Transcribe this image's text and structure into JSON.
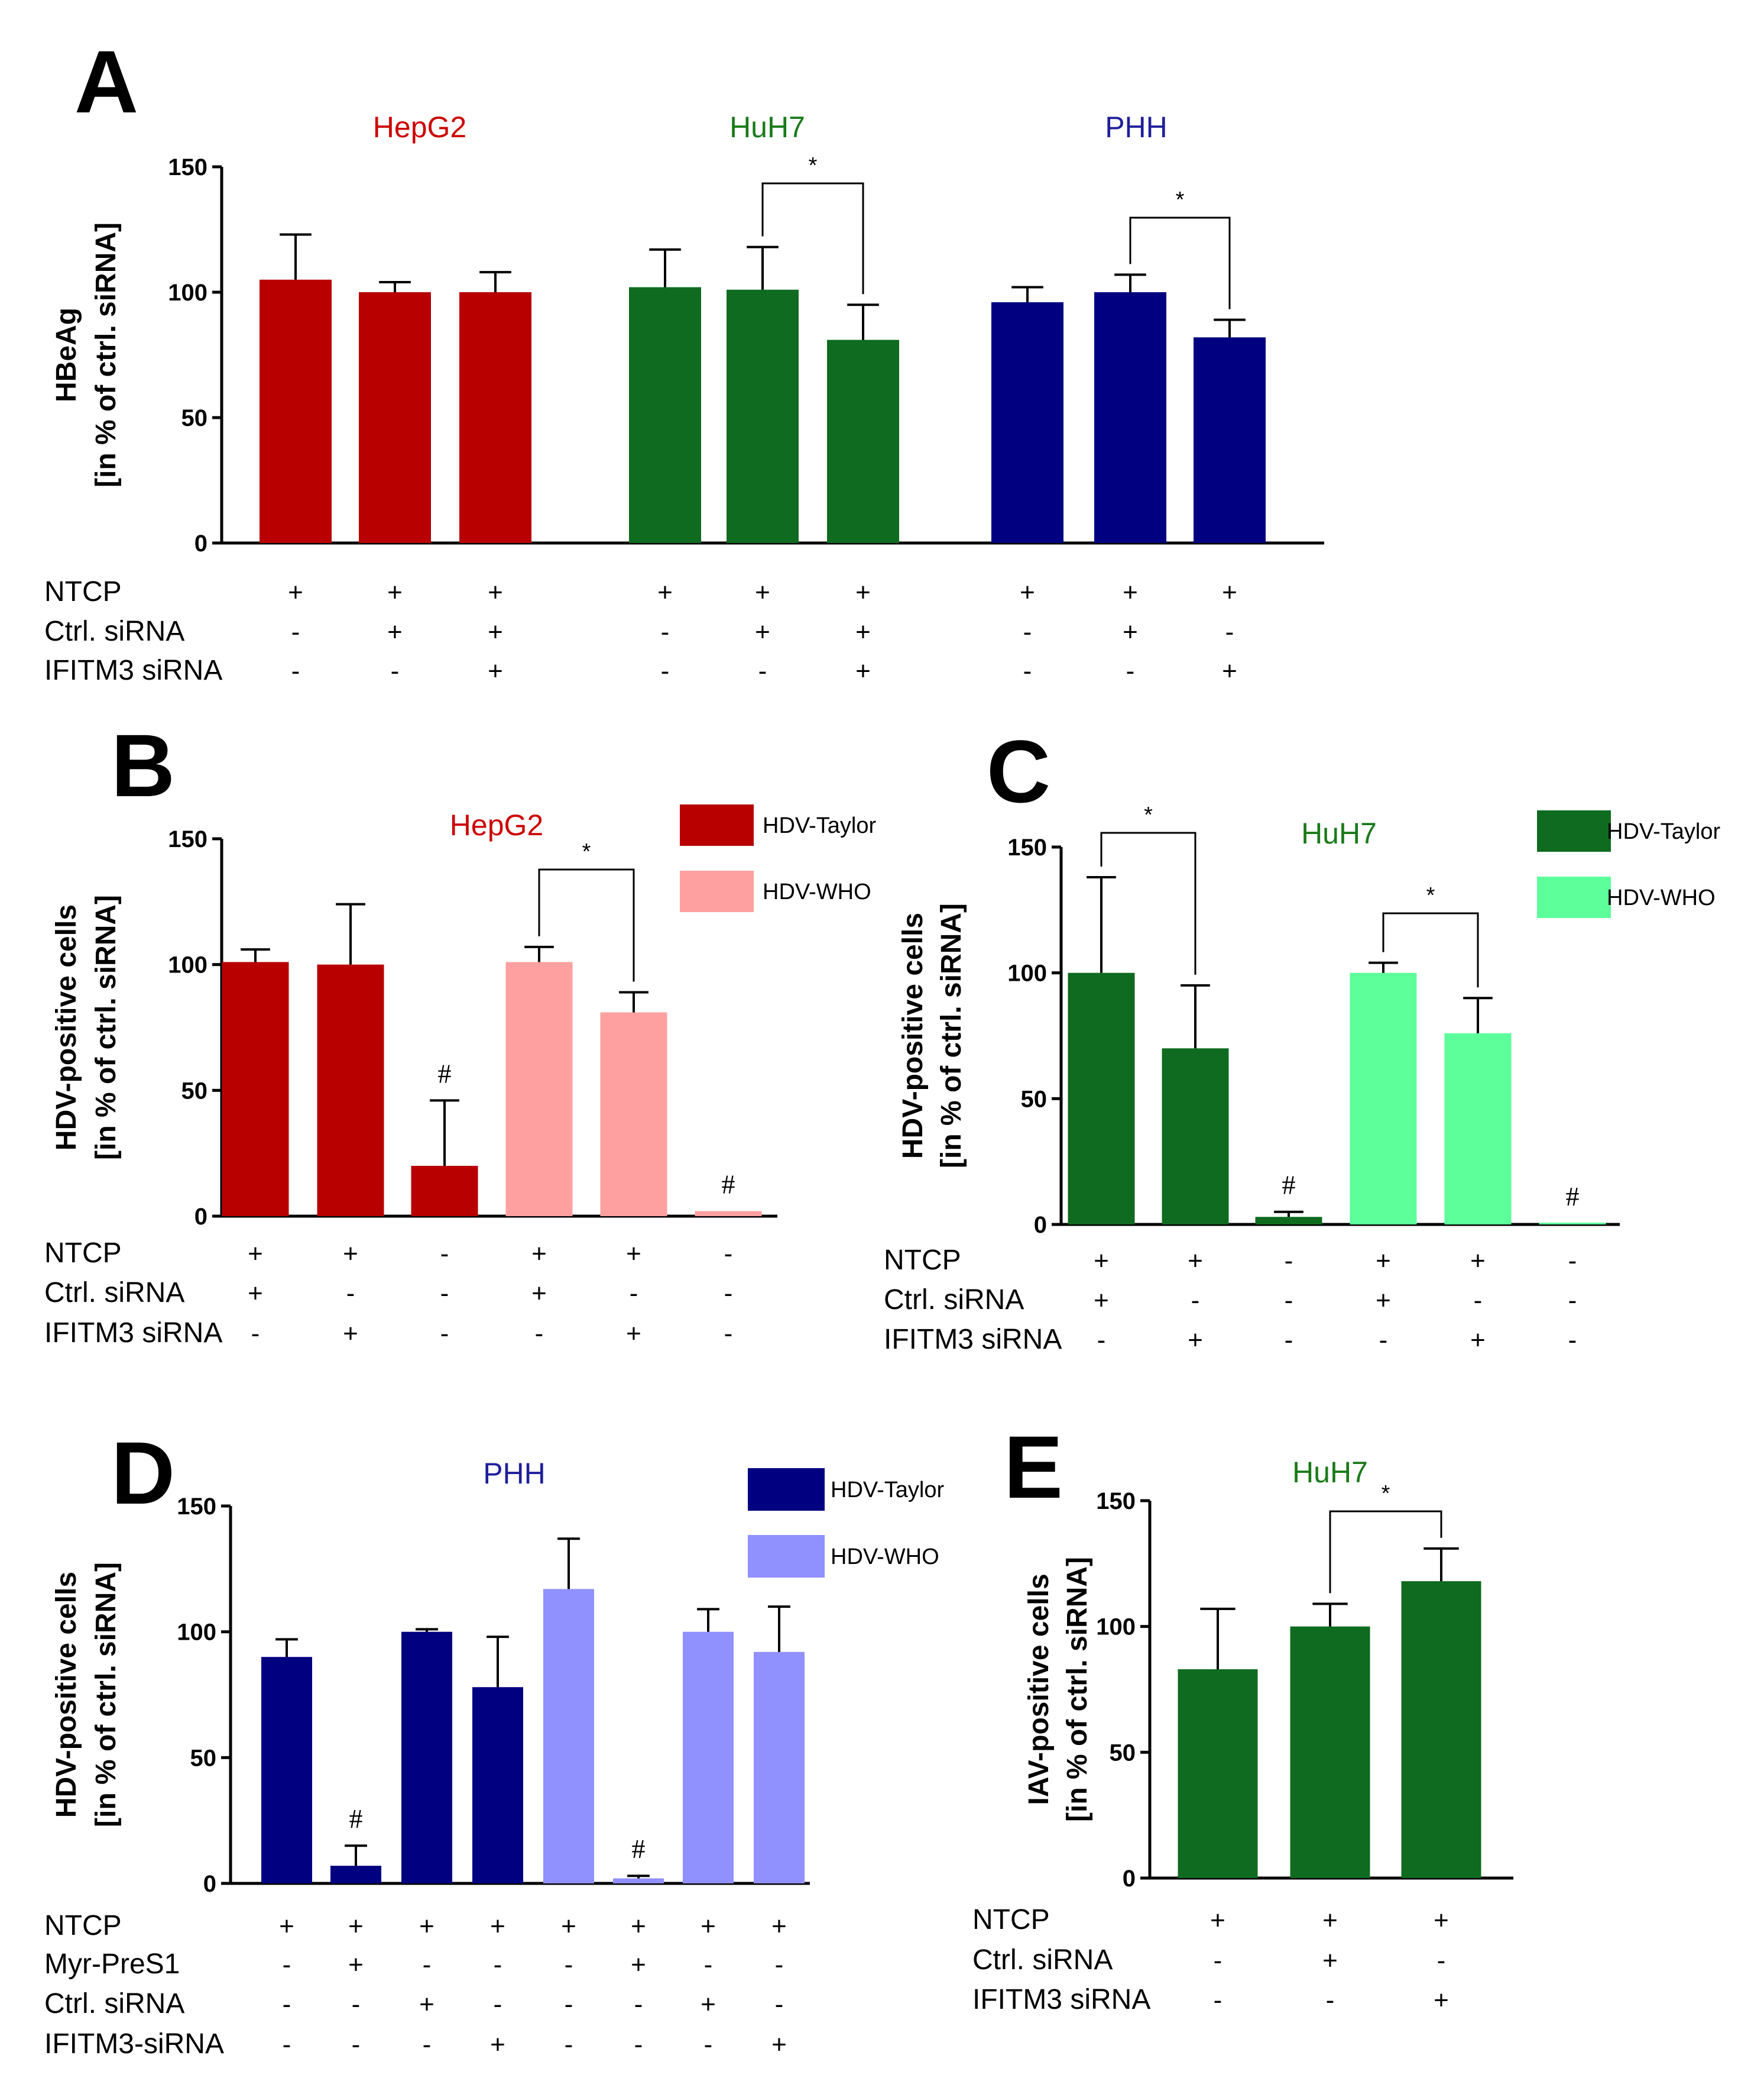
{
  "chart_data": [
    {
      "panel": "A",
      "type": "bar",
      "ylabel_line1": "HBeAg",
      "ylabel_line2": "[in % of ctrl. siRNA]",
      "ylim": [
        0,
        150
      ],
      "yticks": [
        "0",
        "50",
        "100",
        "150"
      ],
      "groups": [
        {
          "title": "HepG2",
          "color": "#cc0000"
        },
        {
          "title": "HuH7",
          "color": "#1a7a1a"
        },
        {
          "title": "PHH",
          "color": "#1f1f9a"
        }
      ],
      "bars": [
        {
          "value": 105,
          "error": 18,
          "color": "#b80000"
        },
        {
          "value": 100,
          "error": 4,
          "color": "#b80000"
        },
        {
          "value": 100,
          "error": 8,
          "color": "#b80000"
        },
        {
          "value": 102,
          "error": 15,
          "color": "#0f6b1f"
        },
        {
          "value": 101,
          "error": 17,
          "color": "#0f6b1f"
        },
        {
          "value": 81,
          "error": 14,
          "color": "#0f6b1f"
        },
        {
          "value": 96,
          "error": 6,
          "color": "#000080"
        },
        {
          "value": 100,
          "error": 7,
          "color": "#000080"
        },
        {
          "value": 82,
          "error": 7,
          "color": "#000080"
        }
      ],
      "significance": [
        {
          "from": 4,
          "to": 5,
          "label": "*"
        },
        {
          "from": 7,
          "to": 8,
          "label": "*"
        }
      ],
      "row_labels": [
        "NTCP",
        "Ctrl. siRNA",
        "IFITM3 siRNA"
      ],
      "row_values": [
        [
          "+",
          "+",
          "+",
          "+",
          "+",
          "+",
          "+",
          "+",
          "+"
        ],
        [
          "-",
          "+",
          "+",
          "-",
          "+",
          "+",
          "-",
          "+",
          "-"
        ],
        [
          "-",
          "-",
          "+",
          "-",
          "-",
          "+",
          "-",
          "-",
          "+"
        ]
      ]
    },
    {
      "panel": "B",
      "type": "bar",
      "title": "HepG2",
      "title_color": "#cc0000",
      "ylabel_line1": "HDV-positive cells",
      "ylabel_line2": "[in % of ctrl. siRNA]",
      "ylim": [
        0,
        150
      ],
      "yticks": [
        "0",
        "50",
        "100",
        "150"
      ],
      "legend": [
        {
          "label": "HDV-Taylor",
          "color": "#b80000"
        },
        {
          "label": "HDV-WHO",
          "color": "#ffa0a0"
        }
      ],
      "bars": [
        {
          "value": 101,
          "error": 5,
          "color": "#b80000"
        },
        {
          "value": 100,
          "error": 24,
          "color": "#b80000"
        },
        {
          "value": 20,
          "error": 26,
          "color": "#b80000",
          "mark": "#"
        },
        {
          "value": 101,
          "error": 6,
          "color": "#ffa0a0"
        },
        {
          "value": 81,
          "error": 8,
          "color": "#ffa0a0"
        },
        {
          "value": 2,
          "error": 0,
          "color": "#ffa0a0",
          "mark": "#"
        }
      ],
      "significance": [
        {
          "from": 3,
          "to": 4,
          "label": "*"
        }
      ],
      "row_labels": [
        "NTCP",
        "Ctrl. siRNA",
        "IFITM3 siRNA"
      ],
      "row_values": [
        [
          "+",
          "+",
          "-",
          "+",
          "+",
          "-"
        ],
        [
          "+",
          "-",
          "-",
          "+",
          "-",
          "-"
        ],
        [
          "-",
          "+",
          "-",
          "-",
          "+",
          "-"
        ]
      ]
    },
    {
      "panel": "C",
      "type": "bar",
      "title": "HuH7",
      "title_color": "#1a7a1a",
      "ylabel_line1": "HDV-positive cells",
      "ylabel_line2": "[in % of ctrl. siRNA]",
      "ylim": [
        0,
        150
      ],
      "yticks": [
        "0",
        "50",
        "100",
        "150"
      ],
      "legend": [
        {
          "label": "HDV-Taylor",
          "color": "#0f6b1f"
        },
        {
          "label": "HDV-WHO",
          "color": "#5cff9a"
        }
      ],
      "bars": [
        {
          "value": 100,
          "error": 38,
          "color": "#0f6b1f"
        },
        {
          "value": 70,
          "error": 25,
          "color": "#0f6b1f"
        },
        {
          "value": 3,
          "error": 2,
          "color": "#0f6b1f",
          "mark": "#"
        },
        {
          "value": 100,
          "error": 4,
          "color": "#5cff9a"
        },
        {
          "value": 76,
          "error": 14,
          "color": "#5cff9a"
        },
        {
          "value": 0.5,
          "error": 0,
          "color": "#5cff9a",
          "mark": "#"
        }
      ],
      "significance": [
        {
          "from": 0,
          "to": 1,
          "label": "*"
        },
        {
          "from": 3,
          "to": 4,
          "label": "*"
        }
      ],
      "row_labels": [
        "NTCP",
        "Ctrl. siRNA",
        "IFITM3 siRNA"
      ],
      "row_values": [
        [
          "+",
          "+",
          "-",
          "+",
          "+",
          "-"
        ],
        [
          "+",
          "-",
          "-",
          "+",
          "-",
          "-"
        ],
        [
          "-",
          "+",
          "-",
          "-",
          "+",
          "-"
        ]
      ]
    },
    {
      "panel": "D",
      "type": "bar",
      "title": "PHH",
      "title_color": "#1f1f9a",
      "ylabel_line1": "HDV-positive cells",
      "ylabel_line2": "[in % of ctrl. siRNA]",
      "ylim": [
        0,
        150
      ],
      "yticks": [
        "0",
        "50",
        "100",
        "150"
      ],
      "legend": [
        {
          "label": "HDV-Taylor",
          "color": "#000080"
        },
        {
          "label": "HDV-WHO",
          "color": "#9090ff"
        }
      ],
      "bars": [
        {
          "value": 90,
          "error": 7,
          "color": "#000080"
        },
        {
          "value": 7,
          "error": 8,
          "color": "#000080",
          "mark": "#"
        },
        {
          "value": 100,
          "error": 1,
          "color": "#000080"
        },
        {
          "value": 78,
          "error": 20,
          "color": "#000080"
        },
        {
          "value": 117,
          "error": 20,
          "color": "#9090ff"
        },
        {
          "value": 2,
          "error": 1,
          "color": "#9090ff",
          "mark": "#"
        },
        {
          "value": 100,
          "error": 9,
          "color": "#9090ff"
        },
        {
          "value": 92,
          "error": 18,
          "color": "#9090ff"
        }
      ],
      "significance": [],
      "row_labels": [
        "NTCP",
        "Myr-PreS1",
        "Ctrl. siRNA",
        "IFITM3-siRNA"
      ],
      "row_values": [
        [
          "+",
          "+",
          "+",
          "+",
          "+",
          "+",
          "+",
          "+"
        ],
        [
          "-",
          "+",
          "-",
          "-",
          "-",
          "+",
          "-",
          "-"
        ],
        [
          "-",
          "-",
          "+",
          "-",
          "-",
          "-",
          "+",
          "-"
        ],
        [
          "-",
          "-",
          "-",
          "+",
          "-",
          "-",
          "-",
          "+"
        ]
      ]
    },
    {
      "panel": "E",
      "type": "bar",
      "title": "HuH7",
      "title_color": "#1a7a1a",
      "ylabel_line1": "IAV-positive cells",
      "ylabel_line2": "[in % of ctrl. siRNA]",
      "ylim": [
        0,
        150
      ],
      "yticks": [
        "0",
        "50",
        "100",
        "150"
      ],
      "bars": [
        {
          "value": 83,
          "error": 24,
          "color": "#0f6b1f"
        },
        {
          "value": 100,
          "error": 9,
          "color": "#0f6b1f"
        },
        {
          "value": 118,
          "error": 13,
          "color": "#0f6b1f"
        }
      ],
      "significance": [
        {
          "from": 1,
          "to": 2,
          "label": "*"
        }
      ],
      "row_labels": [
        "NTCP",
        "Ctrl. siRNA",
        "IFITM3 siRNA"
      ],
      "row_values": [
        [
          "+",
          "+",
          "+"
        ],
        [
          "-",
          "+",
          "-"
        ],
        [
          "-",
          "-",
          "+"
        ]
      ]
    }
  ]
}
